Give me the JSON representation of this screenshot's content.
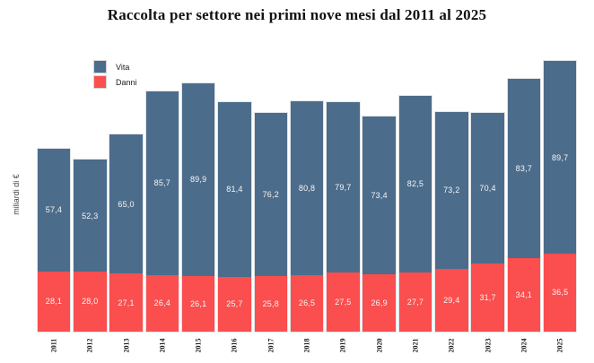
{
  "chart_data": {
    "type": "bar",
    "stacked": true,
    "title": "Raccolta per settore nei primi nove mesi dal 2011 al 2025",
    "ylabel": "miliardi di €",
    "xlabel": "",
    "categories": [
      "2011",
      "2012",
      "2013",
      "2014",
      "2015",
      "2016",
      "2017",
      "2018",
      "2019",
      "2020",
      "2021",
      "2022",
      "2023",
      "2024",
      "2025"
    ],
    "series": [
      {
        "name": "Vita",
        "color": "#4c6c8b",
        "stack_position": "top",
        "values": [
          57.4,
          52.3,
          65.0,
          85.7,
          89.9,
          81.4,
          76.2,
          80.8,
          79.7,
          73.4,
          82.5,
          73.2,
          70.4,
          83.7,
          89.7
        ]
      },
      {
        "name": "Danni",
        "color": "#fb4e4e",
        "stack_position": "bottom",
        "values": [
          28.1,
          28.0,
          27.1,
          26.4,
          26.1,
          25.7,
          25.8,
          26.5,
          27.5,
          26.9,
          27.7,
          29.4,
          31.7,
          34.1,
          36.5
        ]
      }
    ],
    "value_labels": "decimal comma, one digit, white, centered in each segment",
    "legend_position": "top-left inside plot",
    "grid": false,
    "axes_lines": false
  }
}
